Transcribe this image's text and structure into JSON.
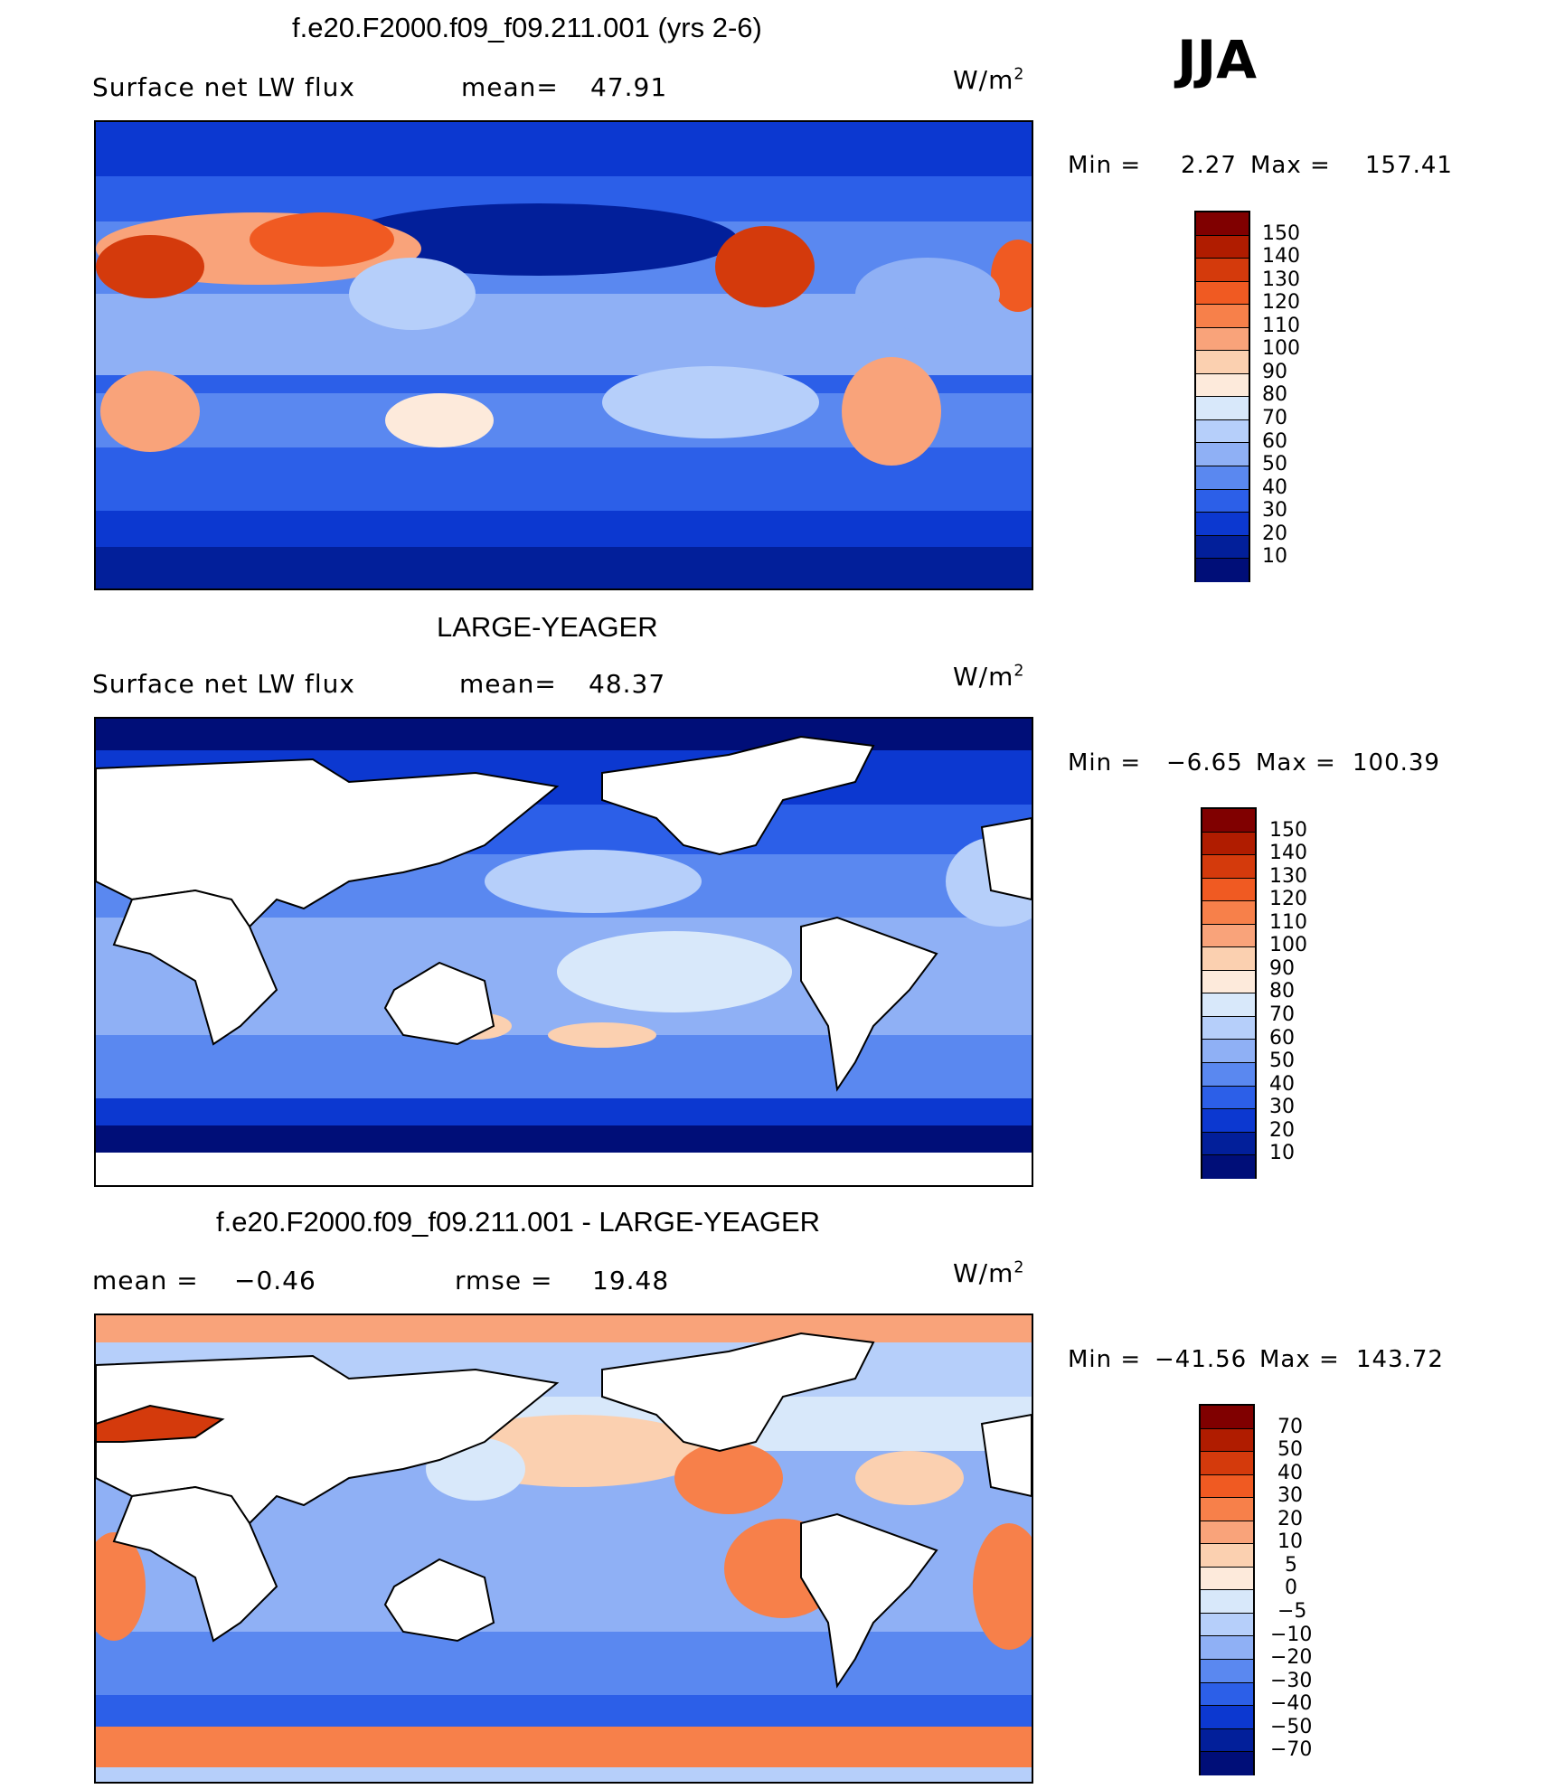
{
  "season": "JJA",
  "panels": [
    {
      "title": "f.e20.F2000.f09_f09.211.001 (yrs 2-6)",
      "variable": "Surface net LW flux",
      "stat1_label": "mean=",
      "stat1_value": "47.91",
      "units": "W/m",
      "units_sup": "2",
      "min_label": "Min =",
      "min_value": "2.27",
      "max_label": "Max =",
      "max_value": "157.41",
      "colorbar_ticks": [
        "150",
        "140",
        "130",
        "120",
        "110",
        "100",
        "90",
        "80",
        "70",
        "60",
        "50",
        "40",
        "30",
        "20",
        "10"
      ]
    },
    {
      "title": "LARGE-YEAGER",
      "variable": "Surface net LW flux",
      "stat1_label": "mean=",
      "stat1_value": "48.37",
      "units": "W/m",
      "units_sup": "2",
      "min_label": "Min =",
      "min_value": "−6.65",
      "max_label": "Max =",
      "max_value": "100.39",
      "colorbar_ticks": [
        "150",
        "140",
        "130",
        "120",
        "110",
        "100",
        "90",
        "80",
        "70",
        "60",
        "50",
        "40",
        "30",
        "20",
        "10"
      ]
    },
    {
      "title": "f.e20.F2000.f09_f09.211.001 - LARGE-YEAGER",
      "stat1_label": "mean =",
      "stat1_value": "−0.46",
      "stat2_label": "rmse =",
      "stat2_value": "19.48",
      "units": "W/m",
      "units_sup": "2",
      "min_label": "Min =",
      "min_value": "−41.56",
      "max_label": "Max =",
      "max_value": "143.72",
      "colorbar_ticks": [
        "70",
        "50",
        "40",
        "30",
        "20",
        "10",
        "5",
        "0",
        "−5",
        "−10",
        "−20",
        "−30",
        "−40",
        "−50",
        "−70"
      ]
    }
  ],
  "colors": {
    "abs_scale": [
      "#800000",
      "#b01c00",
      "#d43a0c",
      "#f05a22",
      "#f7804a",
      "#f9a37a",
      "#fbd0b0",
      "#fdeadb",
      "#d8e8fa",
      "#b6cffa",
      "#8fb0f5",
      "#5a88f0",
      "#2c5fe8",
      "#0c38d0",
      "#021f9a",
      "#000e78"
    ],
    "diff_scale": [
      "#800000",
      "#b01c00",
      "#d43a0c",
      "#f05a22",
      "#f7804a",
      "#f9a37a",
      "#fbd0b0",
      "#fdeadb",
      "#d8e8fa",
      "#b6cffa",
      "#8fb0f5",
      "#5a88f0",
      "#2c5fe8",
      "#0c38d0",
      "#021f9a",
      "#000e78"
    ],
    "land_mask": "#ffffff"
  }
}
